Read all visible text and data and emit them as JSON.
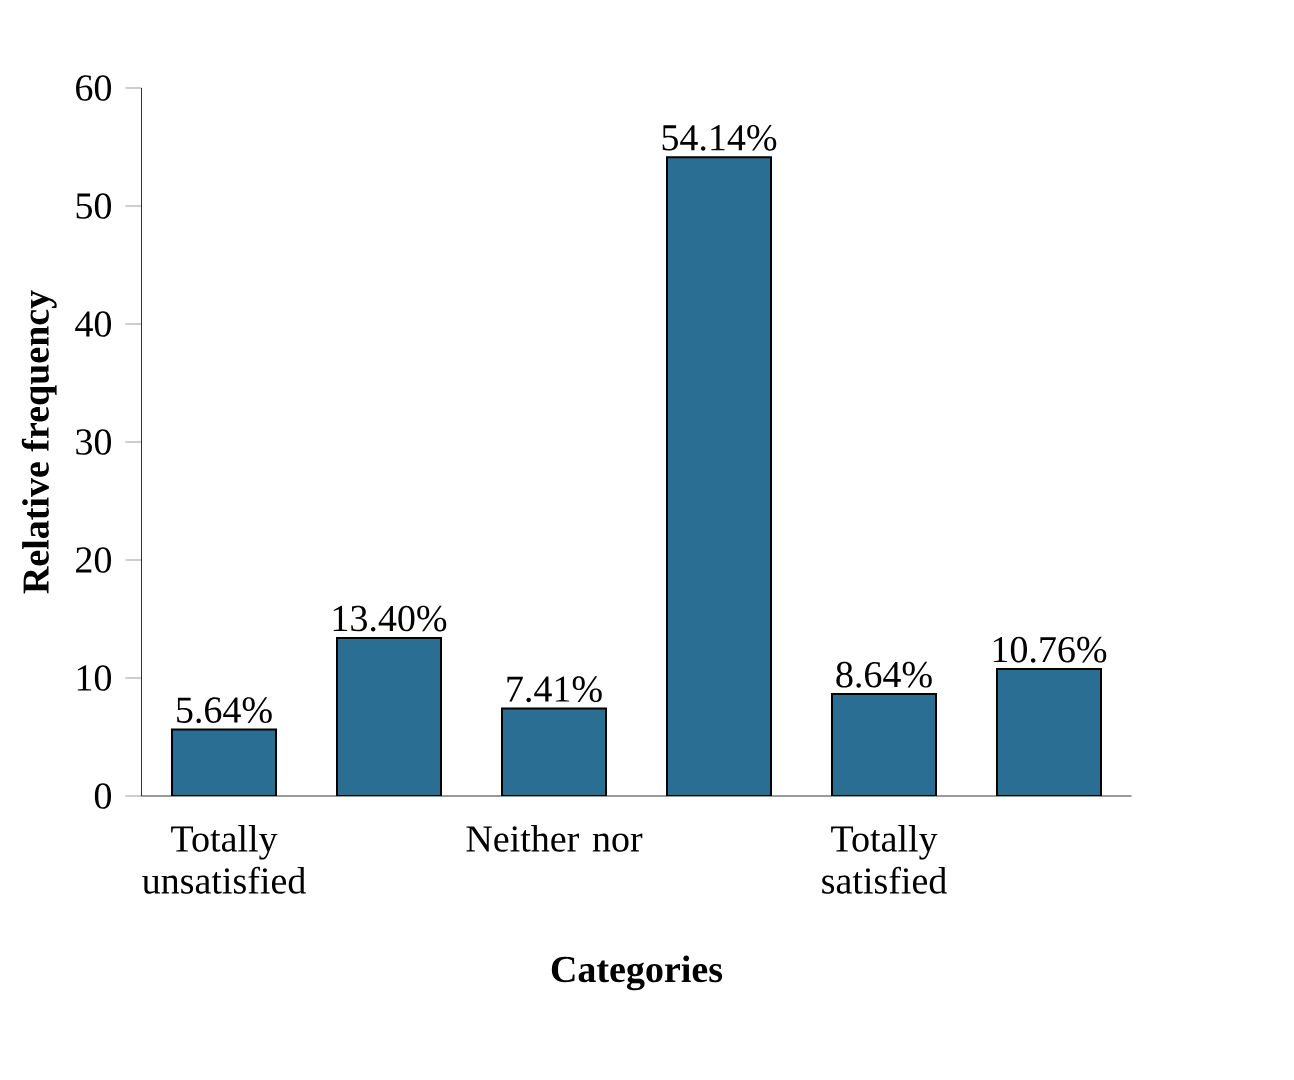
{
  "chart_data": {
    "type": "bar",
    "xlabel": "Categories",
    "ylabel": "Relative frequency",
    "categories": [
      "Totally unsatisfied",
      null,
      "Neither nor",
      null,
      "Totally satisfied",
      null
    ],
    "values": [
      5.64,
      13.4,
      7.41,
      54.14,
      8.64,
      10.76
    ],
    "value_labels": [
      "5.64%",
      "13.40%",
      "7.41%",
      "54.14%",
      "8.64%",
      "10.76%"
    ],
    "color": "#2a6f93",
    "ylim": [
      0,
      60
    ],
    "yticks": [
      0,
      10,
      20,
      30,
      40,
      50,
      60
    ]
  }
}
